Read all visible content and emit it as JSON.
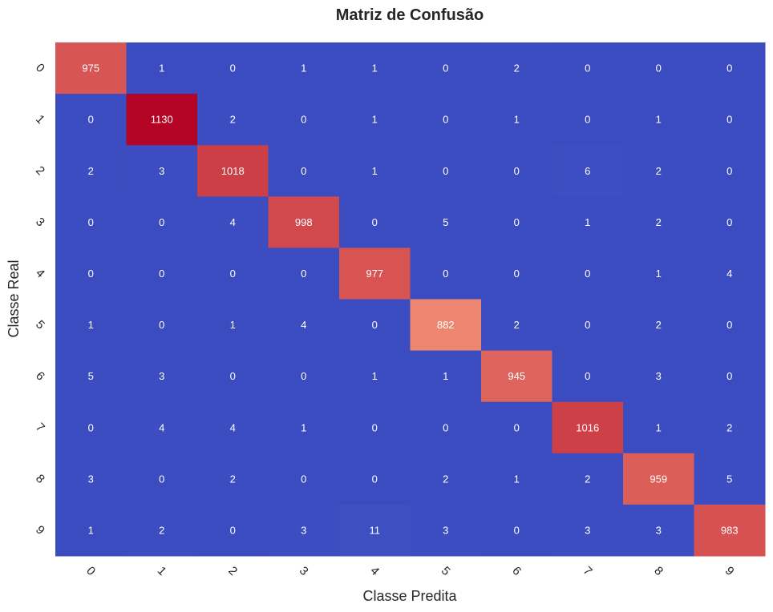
{
  "chart_data": {
    "type": "heatmap",
    "title": "Matriz de Confusão",
    "xlabel": "Classe Predita",
    "ylabel": "Classe Real",
    "x_categories": [
      "0",
      "1",
      "2",
      "3",
      "4",
      "5",
      "6",
      "7",
      "8",
      "9"
    ],
    "y_categories": [
      "0",
      "1",
      "2",
      "3",
      "4",
      "5",
      "6",
      "7",
      "8",
      "9"
    ],
    "matrix": [
      [
        975,
        1,
        0,
        1,
        1,
        0,
        2,
        0,
        0,
        0
      ],
      [
        0,
        1130,
        2,
        0,
        1,
        0,
        1,
        0,
        1,
        0
      ],
      [
        2,
        3,
        1018,
        0,
        1,
        0,
        0,
        6,
        2,
        0
      ],
      [
        0,
        0,
        4,
        998,
        0,
        5,
        0,
        1,
        2,
        0
      ],
      [
        0,
        0,
        0,
        0,
        977,
        0,
        0,
        0,
        1,
        4
      ],
      [
        1,
        0,
        1,
        4,
        0,
        882,
        2,
        0,
        2,
        0
      ],
      [
        5,
        3,
        0,
        0,
        1,
        1,
        945,
        0,
        3,
        0
      ],
      [
        0,
        4,
        4,
        1,
        0,
        0,
        0,
        1016,
        1,
        2
      ],
      [
        3,
        0,
        2,
        0,
        0,
        2,
        1,
        2,
        959,
        5
      ],
      [
        1,
        2,
        0,
        3,
        11,
        3,
        0,
        3,
        3,
        983
      ]
    ],
    "colormap": "coolwarm",
    "colorbar": false,
    "grid": false
  }
}
